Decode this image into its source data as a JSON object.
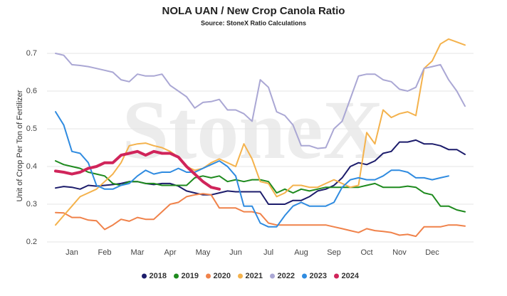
{
  "chart_data": {
    "type": "line",
    "title": "NOLA UAN / New Crop Canola Ratio",
    "subtitle": "Source: StoneX Ratio Calculations",
    "watermark": "StoneX",
    "y_label": "Unit of Crop Per Ton of Fertilizer",
    "categories": [
      null,
      null,
      "Jan",
      null,
      null,
      null,
      "Feb",
      null,
      null,
      null,
      "Mar",
      null,
      null,
      null,
      "Apr",
      null,
      null,
      null,
      "May",
      null,
      null,
      null,
      "Jun",
      null,
      null,
      null,
      "Jul",
      null,
      null,
      null,
      "Aug",
      null,
      null,
      null,
      "Sep",
      null,
      null,
      null,
      "Oct",
      null,
      null,
      null,
      "Nov",
      null,
      null,
      null,
      "Dec",
      null,
      null,
      null,
      null
    ],
    "ylim": [
      0.2,
      0.75
    ],
    "yticks": [
      0.2,
      0.3,
      0.4,
      0.5,
      0.6,
      0.7
    ],
    "grid": true,
    "legend": "bottom",
    "series": [
      {
        "name": "2018",
        "color": "#1c1c6b",
        "values": [
          0.343,
          0.347,
          0.345,
          0.34,
          0.35,
          0.348,
          0.35,
          0.352,
          0.355,
          0.36,
          0.36,
          0.355,
          0.352,
          0.355,
          0.355,
          0.348,
          0.335,
          0.33,
          0.325,
          0.325,
          0.33,
          0.335,
          0.333,
          0.333,
          0.333,
          0.333,
          0.3,
          0.3,
          0.3,
          0.31,
          0.31,
          0.32,
          0.335,
          0.34,
          0.35,
          0.37,
          0.4,
          0.41,
          0.405,
          0.415,
          0.435,
          0.44,
          0.465,
          0.465,
          0.47,
          0.46,
          0.46,
          0.455,
          0.445,
          0.445,
          0.432
        ]
      },
      {
        "name": "2019",
        "color": "#1e8a1e",
        "values": [
          0.415,
          0.405,
          0.4,
          0.395,
          0.385,
          0.38,
          0.375,
          0.355,
          0.35,
          0.36,
          0.36,
          0.355,
          0.355,
          0.35,
          0.35,
          0.35,
          0.35,
          0.37,
          0.375,
          0.37,
          0.375,
          0.36,
          0.365,
          0.36,
          0.365,
          0.365,
          0.36,
          0.33,
          0.34,
          0.33,
          0.34,
          0.335,
          0.34,
          0.345,
          0.345,
          0.345,
          0.345,
          0.345,
          0.35,
          0.355,
          0.345,
          0.345,
          0.345,
          0.348,
          0.345,
          0.33,
          0.325,
          0.295,
          0.295,
          0.285,
          0.28
        ]
      },
      {
        "name": "2020",
        "color": "#f0824a",
        "values": [
          0.278,
          0.277,
          0.265,
          0.265,
          0.258,
          0.256,
          0.233,
          0.245,
          0.26,
          0.255,
          0.265,
          0.26,
          0.26,
          0.28,
          0.3,
          0.305,
          0.32,
          0.325,
          0.328,
          0.325,
          0.29,
          0.29,
          0.29,
          0.28,
          0.28,
          0.275,
          0.25,
          0.245,
          0.245,
          0.245,
          0.245,
          0.245,
          0.245,
          0.245,
          0.24,
          0.235,
          0.23,
          0.225,
          0.235,
          0.23,
          0.228,
          0.225,
          0.218,
          0.22,
          0.215,
          0.24,
          0.24,
          0.24,
          0.245,
          0.245,
          0.242
        ]
      },
      {
        "name": "2021",
        "color": "#f4b24c",
        "values": [
          0.245,
          0.27,
          0.295,
          0.32,
          0.33,
          0.34,
          0.36,
          0.38,
          0.41,
          0.455,
          0.46,
          0.462,
          0.455,
          0.45,
          0.44,
          0.425,
          0.4,
          0.39,
          0.395,
          0.41,
          0.42,
          0.41,
          0.4,
          0.46,
          0.42,
          0.36,
          0.355,
          0.32,
          0.33,
          0.35,
          0.35,
          0.345,
          0.345,
          0.355,
          0.365,
          0.355,
          0.345,
          0.35,
          0.49,
          0.46,
          0.55,
          0.53,
          0.54,
          0.545,
          0.535,
          0.66,
          0.68,
          0.725,
          0.738,
          0.73,
          0.722
        ]
      },
      {
        "name": "2022",
        "color": "#aaa7d4",
        "values": [
          0.7,
          0.695,
          0.67,
          0.668,
          0.665,
          0.66,
          0.655,
          0.65,
          0.63,
          0.625,
          0.645,
          0.64,
          0.64,
          0.645,
          0.615,
          0.6,
          0.585,
          0.555,
          0.57,
          0.572,
          0.578,
          0.55,
          0.55,
          0.54,
          0.52,
          0.63,
          0.61,
          0.545,
          0.535,
          0.51,
          0.455,
          0.455,
          0.448,
          0.45,
          0.5,
          0.52,
          0.58,
          0.64,
          0.645,
          0.645,
          0.63,
          0.625,
          0.605,
          0.6,
          0.61,
          0.66,
          0.665,
          0.67,
          0.63,
          0.6,
          0.56
        ]
      },
      {
        "name": "2023",
        "color": "#2f8be0",
        "values": [
          0.545,
          0.51,
          0.44,
          0.435,
          0.41,
          0.35,
          0.34,
          0.34,
          0.35,
          0.355,
          0.375,
          0.39,
          0.38,
          0.385,
          0.385,
          0.395,
          0.385,
          0.385,
          0.395,
          0.405,
          0.415,
          0.4,
          0.375,
          0.295,
          0.295,
          0.25,
          0.24,
          0.24,
          0.27,
          0.295,
          0.305,
          0.295,
          0.295,
          0.295,
          0.305,
          0.345,
          0.365,
          0.37,
          0.365,
          0.365,
          0.375,
          0.39,
          0.39,
          0.385,
          0.37,
          0.37,
          0.365,
          0.37,
          0.375,
          null,
          null
        ]
      },
      {
        "name": "2024",
        "color": "#d0245a",
        "width": 4,
        "values": [
          0.388,
          0.385,
          0.38,
          0.385,
          0.395,
          0.4,
          0.41,
          0.41,
          0.43,
          0.435,
          0.44,
          0.43,
          0.44,
          0.435,
          0.435,
          0.425,
          0.4,
          0.38,
          0.36,
          0.345,
          0.34,
          null,
          null,
          null,
          null,
          null,
          null,
          null,
          null,
          null,
          null,
          null,
          null,
          null,
          null,
          null,
          null,
          null,
          null,
          null,
          null,
          null,
          null,
          null,
          null,
          null,
          null,
          null,
          null,
          null,
          null
        ]
      }
    ]
  }
}
